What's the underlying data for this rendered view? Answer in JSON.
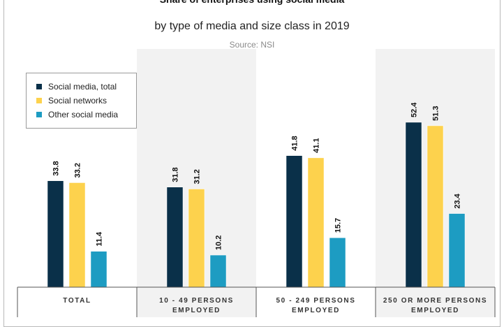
{
  "chart_data": {
    "type": "bar",
    "title": "Share of enterprises using social media",
    "subtitle": "by type of media and size class in 2019",
    "source": "Source: NSI",
    "categories": [
      [
        "TOTAL"
      ],
      [
        "10 - 49 PERSONS",
        "EMPLOYED"
      ],
      [
        "50 - 249 PERSONS",
        "EMPLOYED"
      ],
      [
        "250 OR MORE PERSONS",
        "EMPLOYED"
      ]
    ],
    "series": [
      {
        "name": "Social media, total",
        "color": "#0a3049",
        "values": [
          33.8,
          31.8,
          41.8,
          52.4
        ]
      },
      {
        "name": "Social networks",
        "color": "#fdd24d",
        "values": [
          33.2,
          31.2,
          41.1,
          51.3
        ]
      },
      {
        "name": "Other social media",
        "color": "#1d9cc2",
        "values": [
          11.4,
          10.2,
          15.7,
          23.4
        ]
      }
    ],
    "ylim": [
      0,
      62
    ],
    "grid": false,
    "legend_position": "top-left",
    "highlight_color": "#f2f2f2"
  }
}
